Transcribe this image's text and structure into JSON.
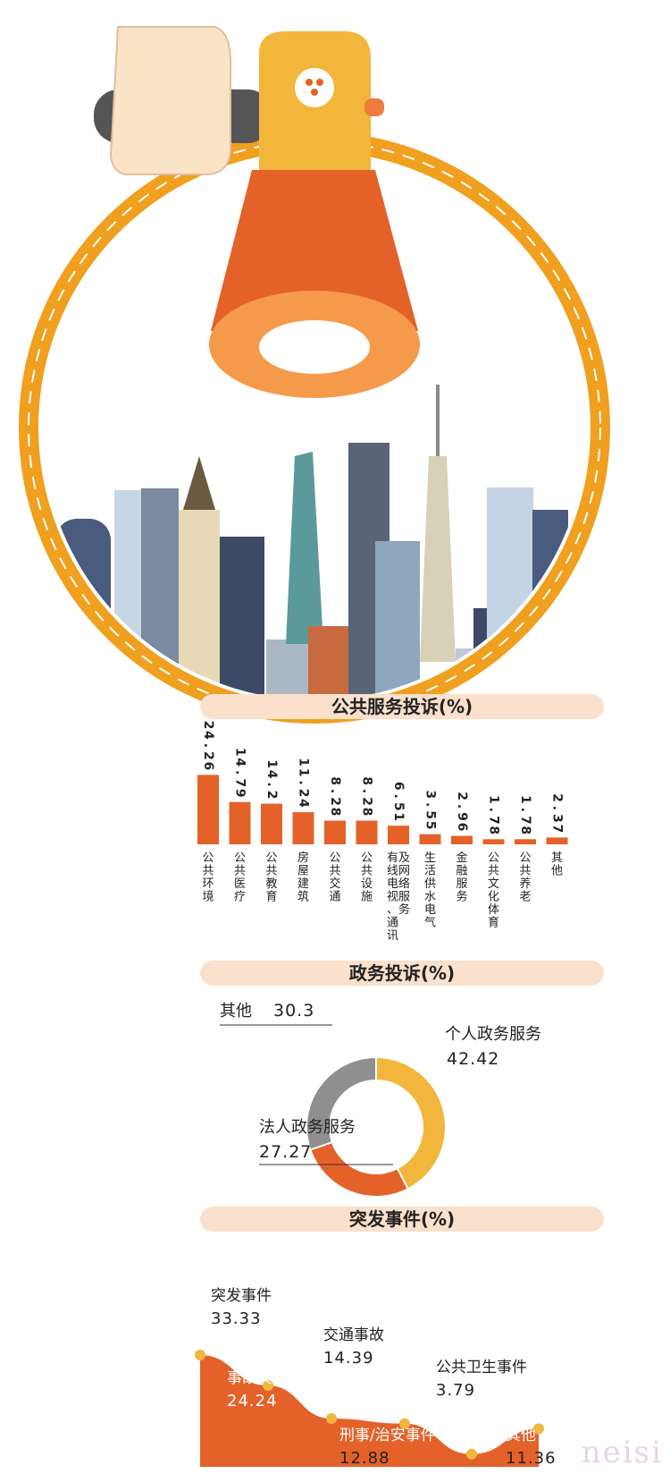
{
  "public_service": {
    "title": "公共服务投诉(%)"
  },
  "government": {
    "title": "政务投诉(%)"
  },
  "emergency": {
    "title": "突发事件(%)"
  },
  "watermark": "neisi",
  "colors": {
    "orange": "#e4622a",
    "yellow": "#f2b63c",
    "gray": "#8f8f8f",
    "banner": "#fbe0cc",
    "ring": "#f0a01e"
  },
  "chart_data": [
    {
      "type": "bar",
      "title": "公共服务投诉(%)",
      "categories": [
        "公共环境",
        "公共医疗",
        "公共教育",
        "房屋建筑",
        "公共交通",
        "公共设施",
        "有线电视、通讯及网络服务",
        "生活供水电气",
        "金融服务",
        "公共文化体育",
        "公共养老",
        "其他"
      ],
      "category_columns": [
        [
          "公共环境"
        ],
        [
          "公共医疗"
        ],
        [
          "公共教育"
        ],
        [
          "房屋建筑"
        ],
        [
          "公共交通"
        ],
        [
          "公共设施"
        ],
        [
          "有线电视、通讯",
          "及网络服务"
        ],
        [
          "生活供水电气"
        ],
        [
          "金融服务"
        ],
        [
          "公共文化体育"
        ],
        [
          "公共养老"
        ],
        [
          "其他"
        ]
      ],
      "values": [
        24.26,
        14.79,
        14.2,
        11.24,
        8.28,
        8.28,
        6.51,
        3.55,
        2.96,
        1.78,
        1.78,
        2.37
      ],
      "value_labels": [
        "24.26",
        "14.79",
        "14.2",
        "11.24",
        "8.28",
        "8.28",
        "6.51",
        "3.55",
        "2.96",
        "1.78",
        "1.78",
        "2.37"
      ],
      "ylim": [
        0,
        30
      ]
    },
    {
      "type": "pie",
      "title": "政务投诉(%)",
      "slices": [
        {
          "name": "个人政务服务",
          "value": 42.42,
          "label": "42.42",
          "color": "#f2b63c"
        },
        {
          "name": "法人政务服务",
          "value": 27.27,
          "label": "27.27",
          "color": "#e4622a"
        },
        {
          "name": "其他",
          "value": 30.3,
          "label": "30.3",
          "color": "#8f8f8f"
        }
      ]
    },
    {
      "type": "area",
      "title": "突发事件(%)",
      "categories": [
        "突发事件",
        "事故灾害",
        "交通事故",
        "刑事/治安事件",
        "公共卫生事件",
        "其他"
      ],
      "values": [
        33.33,
        24.24,
        14.39,
        12.88,
        3.79,
        11.36
      ],
      "value_labels": [
        "33.33",
        "24.24",
        "14.39",
        "12.88",
        "3.79",
        "11.36"
      ],
      "ylim": [
        0,
        40
      ]
    }
  ]
}
